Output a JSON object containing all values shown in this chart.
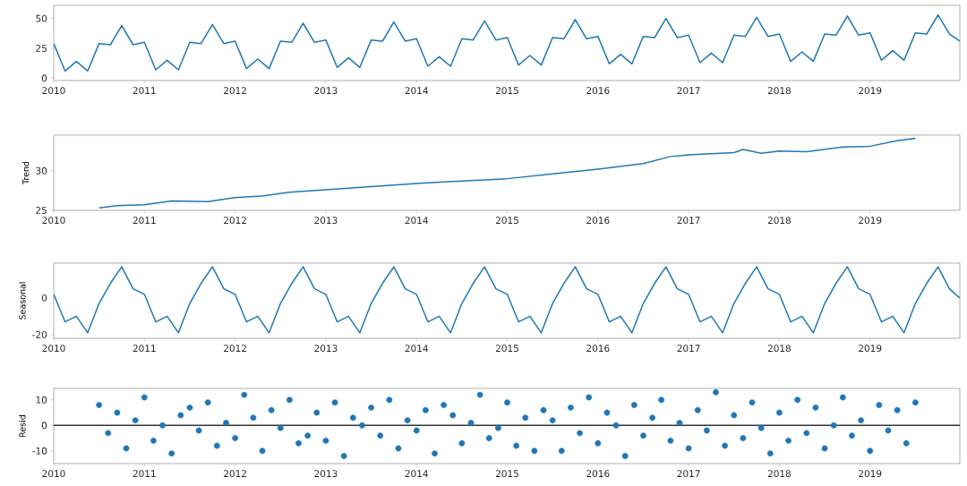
{
  "chart_data": [
    {
      "type": "line",
      "color": "#1f77b4",
      "xlim": [
        2010,
        2019.99
      ],
      "ylim": [
        -2,
        61
      ],
      "xticks": [
        2010,
        2011,
        2012,
        2013,
        2014,
        2015,
        2016,
        2017,
        2018,
        2019
      ],
      "yticks": [
        0,
        25,
        50
      ],
      "x": [
        2010,
        2010.125,
        2010.25,
        2010.375,
        2010.5,
        2010.625,
        2010.75,
        2010.875,
        2011,
        2011.125,
        2011.25,
        2011.375,
        2011.5,
        2011.625,
        2011.75,
        2011.875,
        2012,
        2012.125,
        2012.25,
        2012.375,
        2012.5,
        2012.625,
        2012.75,
        2012.875,
        2013,
        2013.125,
        2013.25,
        2013.375,
        2013.5,
        2013.625,
        2013.75,
        2013.875,
        2014,
        2014.125,
        2014.25,
        2014.375,
        2014.5,
        2014.625,
        2014.75,
        2014.875,
        2015,
        2015.125,
        2015.25,
        2015.375,
        2015.5,
        2015.625,
        2015.75,
        2015.875,
        2016,
        2016.125,
        2016.25,
        2016.375,
        2016.5,
        2016.625,
        2016.75,
        2016.875,
        2017,
        2017.125,
        2017.25,
        2017.375,
        2017.5,
        2017.625,
        2017.75,
        2017.875,
        2018,
        2018.125,
        2018.25,
        2018.375,
        2018.5,
        2018.625,
        2018.75,
        2018.875,
        2019,
        2019.125,
        2019.25,
        2019.375,
        2019.5,
        2019.625,
        2019.75,
        2019.875,
        2019.99
      ],
      "values": [
        29,
        6,
        14,
        6,
        29,
        28,
        44,
        28,
        30,
        7,
        15,
        7,
        30,
        29,
        45,
        29,
        31,
        8,
        16,
        8,
        31,
        30,
        46,
        30,
        32,
        9,
        17,
        9,
        32,
        31,
        47,
        31,
        33,
        10,
        18,
        10,
        33,
        32,
        48,
        32,
        34,
        11,
        19,
        11,
        34,
        33,
        49,
        33,
        35,
        12,
        20,
        12,
        35,
        34,
        50,
        34,
        36,
        13,
        21,
        13,
        36,
        35,
        51,
        35,
        37,
        14,
        22,
        14,
        37,
        36,
        52,
        36,
        38,
        15,
        23,
        15,
        38,
        37,
        53,
        37,
        31
      ]
    },
    {
      "type": "line",
      "color": "#1f77b4",
      "ylabel": "Trend",
      "xlim": [
        2010,
        2019.99
      ],
      "ylim": [
        25,
        34.5
      ],
      "xticks": [
        2010,
        2011,
        2012,
        2013,
        2014,
        2015,
        2016,
        2017,
        2018,
        2019
      ],
      "yticks": [
        25,
        30
      ],
      "x": [
        2010.5,
        2010.7,
        2011.0,
        2011.3,
        2011.7,
        2012.0,
        2012.3,
        2012.6,
        2013.0,
        2013.5,
        2014.0,
        2014.5,
        2015.0,
        2015.5,
        2016.0,
        2016.5,
        2016.8,
        2017.0,
        2017.5,
        2017.6,
        2017.8,
        2018.0,
        2018.3,
        2018.7,
        2019.0,
        2019.3,
        2019.5
      ],
      "values": [
        25.3,
        25.6,
        25.7,
        26.2,
        26.1,
        26.6,
        26.8,
        27.3,
        27.6,
        28.0,
        28.4,
        28.7,
        29.0,
        29.6,
        30.2,
        30.9,
        31.8,
        32.0,
        32.3,
        32.7,
        32.2,
        32.5,
        32.4,
        33.0,
        33.1,
        33.8,
        34.1
      ]
    },
    {
      "type": "line",
      "color": "#1f77b4",
      "ylabel": "Seasonal",
      "xlim": [
        2010,
        2019.99
      ],
      "ylim": [
        -22,
        19
      ],
      "xticks": [
        2010,
        2011,
        2012,
        2013,
        2014,
        2015,
        2016,
        2017,
        2018,
        2019
      ],
      "yticks": [
        -20,
        0
      ],
      "x": [
        2010,
        2010.125,
        2010.25,
        2010.375,
        2010.5,
        2010.625,
        2010.75,
        2010.875,
        2011,
        2011.125,
        2011.25,
        2011.375,
        2011.5,
        2011.625,
        2011.75,
        2011.875,
        2012,
        2012.125,
        2012.25,
        2012.375,
        2012.5,
        2012.625,
        2012.75,
        2012.875,
        2013,
        2013.125,
        2013.25,
        2013.375,
        2013.5,
        2013.625,
        2013.75,
        2013.875,
        2014,
        2014.125,
        2014.25,
        2014.375,
        2014.5,
        2014.625,
        2014.75,
        2014.875,
        2015,
        2015.125,
        2015.25,
        2015.375,
        2015.5,
        2015.625,
        2015.75,
        2015.875,
        2016,
        2016.125,
        2016.25,
        2016.375,
        2016.5,
        2016.625,
        2016.75,
        2016.875,
        2017,
        2017.125,
        2017.25,
        2017.375,
        2017.5,
        2017.625,
        2017.75,
        2017.875,
        2018,
        2018.125,
        2018.25,
        2018.375,
        2018.5,
        2018.625,
        2018.75,
        2018.875,
        2019,
        2019.125,
        2019.25,
        2019.375,
        2019.5,
        2019.625,
        2019.75,
        2019.875,
        2019.99
      ],
      "values": [
        2,
        -13,
        -10,
        -19,
        -3,
        8,
        17,
        5,
        2,
        -13,
        -10,
        -19,
        -3,
        8,
        17,
        5,
        2,
        -13,
        -10,
        -19,
        -3,
        8,
        17,
        5,
        2,
        -13,
        -10,
        -19,
        -3,
        8,
        17,
        5,
        2,
        -13,
        -10,
        -19,
        -3,
        8,
        17,
        5,
        2,
        -13,
        -10,
        -19,
        -3,
        8,
        17,
        5,
        2,
        -13,
        -10,
        -19,
        -3,
        8,
        17,
        5,
        2,
        -13,
        -10,
        -19,
        -3,
        8,
        17,
        5,
        2,
        -13,
        -10,
        -19,
        -3,
        8,
        17,
        5,
        2,
        -13,
        -10,
        -19,
        -3,
        8,
        17,
        5,
        0
      ]
    },
    {
      "type": "scatter",
      "color": "#1f77b4",
      "marker": "circle",
      "ylabel": "Resid",
      "xlim": [
        2010,
        2019.99
      ],
      "ylim": [
        -15,
        14.5
      ],
      "xticks": [
        2010,
        2011,
        2012,
        2013,
        2014,
        2015,
        2016,
        2017,
        2018,
        2019
      ],
      "yticks": [
        -10,
        0,
        10
      ],
      "ref_lines": [
        {
          "axis": "y",
          "value": 0,
          "color": "#333333"
        }
      ],
      "x": [
        2010.5,
        2010.6,
        2010.7,
        2010.8,
        2010.9,
        2011.0,
        2011.1,
        2011.2,
        2011.3,
        2011.4,
        2011.5,
        2011.6,
        2011.7,
        2011.8,
        2011.9,
        2012.0,
        2012.1,
        2012.2,
        2012.3,
        2012.4,
        2012.5,
        2012.6,
        2012.7,
        2012.8,
        2012.9,
        2013.0,
        2013.1,
        2013.2,
        2013.3,
        2013.4,
        2013.5,
        2013.6,
        2013.7,
        2013.8,
        2013.9,
        2014.0,
        2014.1,
        2014.2,
        2014.3,
        2014.4,
        2014.5,
        2014.6,
        2014.7,
        2014.8,
        2014.9,
        2015.0,
        2015.1,
        2015.2,
        2015.3,
        2015.4,
        2015.5,
        2015.6,
        2015.7,
        2015.8,
        2015.9,
        2016.0,
        2016.1,
        2016.2,
        2016.3,
        2016.4,
        2016.5,
        2016.6,
        2016.7,
        2016.8,
        2016.9,
        2017.0,
        2017.1,
        2017.2,
        2017.3,
        2017.4,
        2017.5,
        2017.6,
        2017.7,
        2017.8,
        2017.9,
        2018.0,
        2018.1,
        2018.2,
        2018.3,
        2018.4,
        2018.5,
        2018.6,
        2018.7,
        2018.8,
        2018.9,
        2019.0,
        2019.1,
        2019.2,
        2019.3,
        2019.4,
        2019.5
      ],
      "values": [
        8,
        -3,
        5,
        -9,
        2,
        11,
        -6,
        0,
        -11,
        4,
        7,
        -2,
        9,
        -8,
        1,
        -5,
        12,
        3,
        -10,
        6,
        -1,
        10,
        -7,
        -4,
        5,
        -6,
        9,
        -12,
        3,
        0,
        7,
        -4,
        10,
        -9,
        2,
        -2,
        6,
        -11,
        8,
        4,
        -7,
        1,
        12,
        -5,
        -1,
        9,
        -8,
        3,
        -10,
        6,
        2,
        -10,
        7,
        -3,
        11,
        -7,
        5,
        0,
        -12,
        8,
        -4,
        3,
        10,
        -6,
        1,
        -9,
        6,
        -2,
        13,
        -8,
        4,
        -5,
        9,
        -1,
        -11,
        5,
        -6,
        10,
        -3,
        7,
        -9,
        0,
        11,
        -4,
        2,
        -10,
        8,
        -2,
        6,
        -7,
        9
      ]
    }
  ]
}
